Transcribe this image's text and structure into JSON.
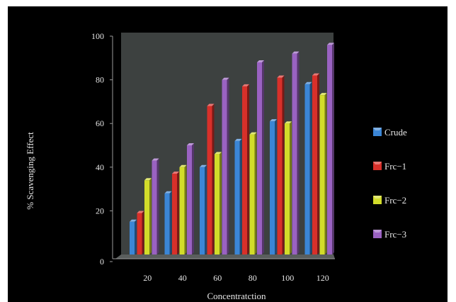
{
  "chart_data": {
    "type": "bar",
    "xlabel": "Concentratction",
    "ylabel": "% Scavenging Effect",
    "categories": [
      "20",
      "40",
      "60",
      "80",
      "100",
      "120"
    ],
    "ylim": [
      0,
      100
    ],
    "yticks": [
      "0",
      "20",
      "40",
      "60",
      "80",
      "100"
    ],
    "grid": false,
    "legend_position": "right",
    "series": [
      {
        "name": "Crude",
        "values": [
          15,
          28,
          40,
          52,
          61,
          78
        ],
        "color": "#3b86d6"
      },
      {
        "name": "Frc−1",
        "values": [
          19,
          37,
          68,
          77,
          81,
          82
        ],
        "color": "#d8302a"
      },
      {
        "name": "Frc−2",
        "values": [
          34,
          40,
          46,
          55,
          60,
          73
        ],
        "color": "#d2dc2a"
      },
      {
        "name": "Frc−3",
        "values": [
          43,
          50,
          80,
          88,
          92,
          96
        ],
        "color": "#9a62c2"
      }
    ],
    "plot_background": "#3d4140",
    "frame_background": "#000000"
  }
}
